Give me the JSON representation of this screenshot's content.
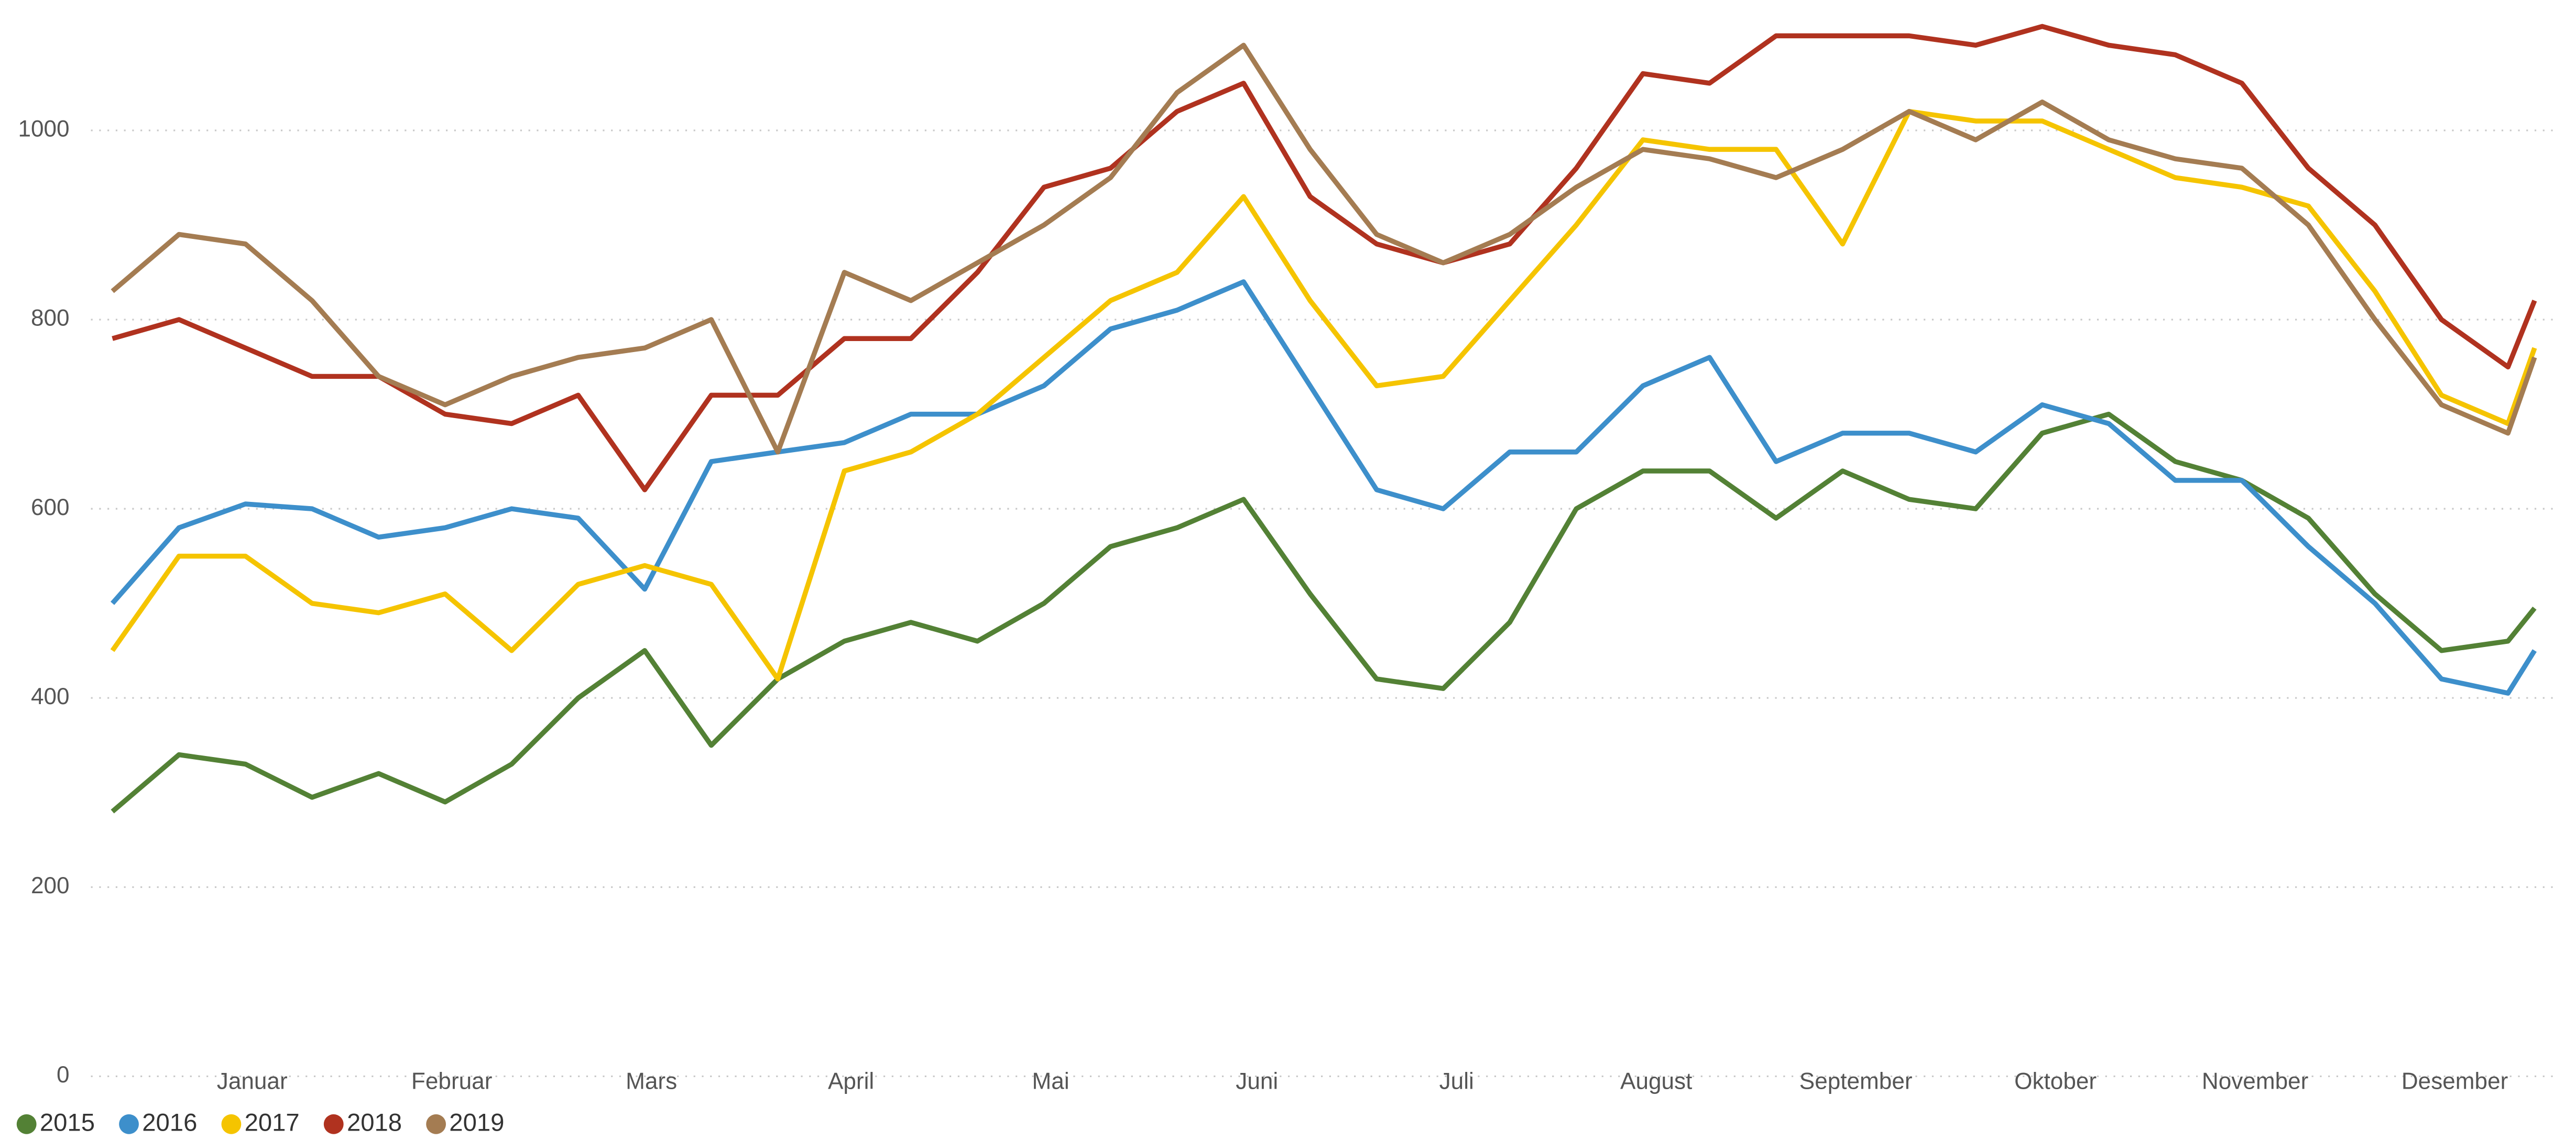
{
  "chart_data": {
    "type": "line",
    "x": [
      0,
      10,
      20,
      30,
      40,
      50,
      60,
      70,
      80,
      90,
      100,
      110,
      120,
      130,
      140,
      150,
      160,
      170,
      180,
      190,
      200,
      210,
      220,
      230,
      240,
      250,
      260,
      270,
      280,
      290,
      300,
      310,
      320,
      330,
      340,
      350,
      360,
      364
    ],
    "xlim": [
      0,
      364
    ],
    "xticks": [
      {
        "value": 21,
        "label": "Januar"
      },
      {
        "value": 51,
        "label": "Februar"
      },
      {
        "value": 81,
        "label": "Mars"
      },
      {
        "value": 111,
        "label": "April"
      },
      {
        "value": 141,
        "label": "Mai"
      },
      {
        "value": 172,
        "label": "Juni"
      },
      {
        "value": 202,
        "label": "Juli"
      },
      {
        "value": 232,
        "label": "August"
      },
      {
        "value": 262,
        "label": "September"
      },
      {
        "value": 292,
        "label": "Oktober"
      },
      {
        "value": 322,
        "label": "November"
      },
      {
        "value": 352,
        "label": "Desember"
      }
    ],
    "ylim": [
      0,
      1100
    ],
    "yticks": [
      0,
      200,
      400,
      600,
      800,
      1000
    ],
    "grid": true,
    "legend": "bottom-left",
    "series": [
      {
        "name": "2015",
        "color": "#538135",
        "values": [
          280,
          340,
          330,
          295,
          320,
          290,
          330,
          400,
          450,
          350,
          420,
          460,
          480,
          460,
          500,
          560,
          580,
          610,
          510,
          420,
          410,
          480,
          600,
          640,
          640,
          590,
          640,
          610,
          600,
          680,
          700,
          650,
          630,
          590,
          510,
          450,
          460,
          495
        ]
      },
      {
        "name": "2016",
        "color": "#3d8fcb",
        "values": [
          500,
          580,
          605,
          600,
          570,
          580,
          600,
          590,
          515,
          650,
          660,
          670,
          700,
          700,
          730,
          790,
          810,
          840,
          730,
          620,
          600,
          660,
          660,
          730,
          760,
          650,
          680,
          680,
          660,
          710,
          690,
          630,
          630,
          560,
          500,
          420,
          405,
          450
        ]
      },
      {
        "name": "2017",
        "color": "#f5c400",
        "values": [
          450,
          550,
          550,
          500,
          490,
          510,
          450,
          520,
          540,
          520,
          420,
          640,
          660,
          700,
          760,
          820,
          850,
          930,
          820,
          730,
          740,
          820,
          900,
          990,
          980,
          980,
          880,
          1020,
          1010,
          1010,
          980,
          950,
          940,
          920,
          830,
          720,
          690,
          770
        ]
      },
      {
        "name": "2018",
        "color": "#b0321f",
        "values": [
          780,
          800,
          770,
          740,
          740,
          700,
          690,
          720,
          620,
          720,
          720,
          780,
          780,
          850,
          940,
          960,
          1020,
          1050,
          930,
          880,
          860,
          880,
          960,
          1060,
          1050,
          1100,
          1100,
          1100,
          1090,
          1110,
          1090,
          1080,
          1050,
          960,
          900,
          800,
          750,
          820
        ]
      },
      {
        "name": "2019",
        "color": "#a47c52",
        "values": [
          830,
          890,
          880,
          820,
          740,
          710,
          740,
          760,
          770,
          800,
          660,
          850,
          820,
          860,
          900,
          950,
          1040,
          1090,
          980,
          890,
          860,
          890,
          940,
          980,
          970,
          950,
          980,
          1020,
          990,
          1030,
          990,
          970,
          960,
          900,
          800,
          710,
          680,
          760
        ]
      }
    ]
  }
}
